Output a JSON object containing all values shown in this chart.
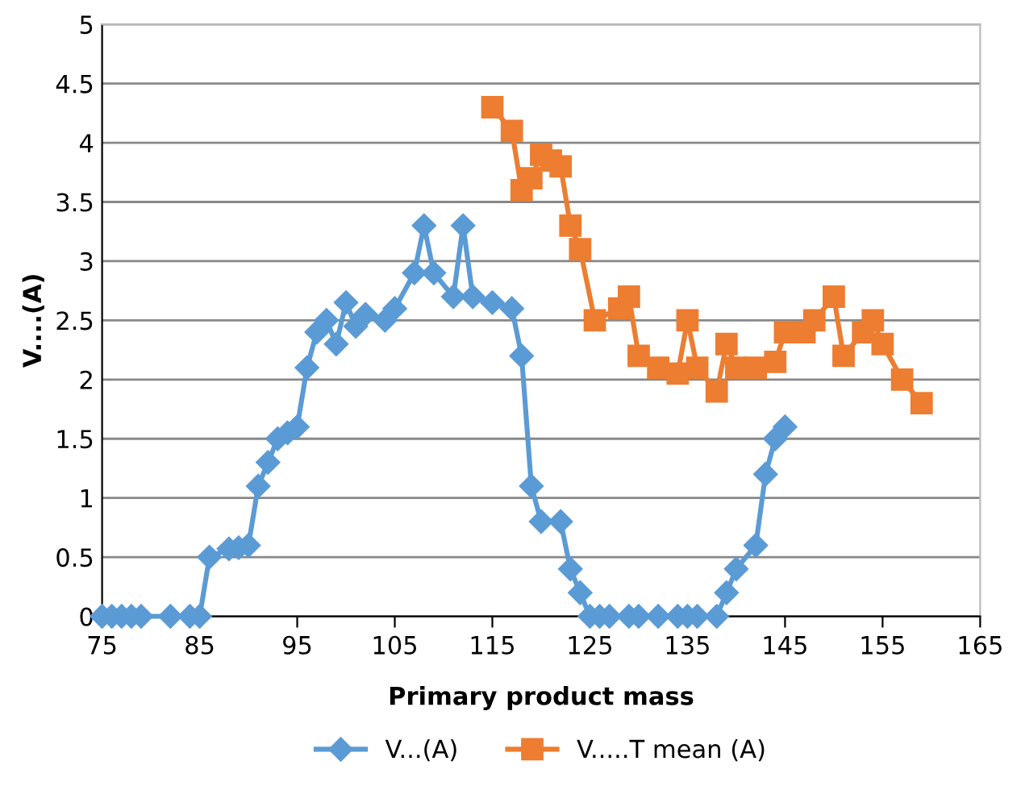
{
  "chart_data": {
    "type": "line",
    "xlabel": "Primary product mass",
    "ylabel": "V....(A)",
    "xlim": [
      75,
      165
    ],
    "xticks": [
      75,
      85,
      95,
      105,
      115,
      125,
      135,
      145,
      155,
      165
    ],
    "ylim": [
      0,
      5
    ],
    "yticks": [
      0,
      0.5,
      1,
      1.5,
      2,
      2.5,
      3,
      3.5,
      4,
      4.5,
      5
    ],
    "grid": "y",
    "legend": "bottom",
    "series": [
      {
        "name": "V...(A)",
        "color": "#5b9bd5",
        "marker": "diamond",
        "x": [
          75,
          76,
          77,
          78,
          79,
          82,
          84,
          85,
          86,
          88,
          89,
          90,
          91,
          92,
          93,
          94,
          95,
          96,
          97,
          98,
          99,
          100,
          101,
          102,
          104,
          105,
          107,
          108,
          109,
          111,
          112,
          113,
          115,
          117,
          118,
          119,
          120,
          122,
          123,
          124,
          125,
          126,
          127,
          129,
          130,
          132,
          134,
          135,
          136,
          138,
          139,
          140,
          142,
          143,
          144,
          145
        ],
        "values": [
          0,
          0,
          0,
          0,
          0,
          0,
          0,
          0,
          0.5,
          0.57,
          0.58,
          0.6,
          1.1,
          1.3,
          1.5,
          1.55,
          1.6,
          2.1,
          2.4,
          2.5,
          2.3,
          2.65,
          2.45,
          2.55,
          2.5,
          2.6,
          2.9,
          3.3,
          2.9,
          2.7,
          3.3,
          2.7,
          2.65,
          2.6,
          2.2,
          1.1,
          0.8,
          0.8,
          0.4,
          0.2,
          0,
          0,
          0,
          0,
          0,
          0,
          0,
          0,
          0,
          0,
          0.2,
          0.4,
          0.6,
          1.2,
          1.5,
          1.6
        ]
      },
      {
        "name": "V.....T mean (A)",
        "color": "#ed7d31",
        "marker": "square",
        "x": [
          115,
          117,
          118,
          119,
          120,
          121,
          122,
          123,
          124,
          125.5,
          128,
          129,
          130,
          132,
          134,
          135,
          136,
          138,
          139,
          140,
          142,
          144,
          145,
          147,
          148,
          150,
          151,
          153,
          154,
          155,
          157,
          159
        ],
        "values": [
          4.3,
          4.1,
          3.6,
          3.7,
          3.9,
          3.85,
          3.8,
          3.3,
          3.1,
          2.5,
          2.6,
          2.7,
          2.2,
          2.1,
          2.05,
          2.5,
          2.1,
          1.9,
          2.3,
          2.1,
          2.1,
          2.15,
          2.4,
          2.4,
          2.5,
          2.7,
          2.2,
          2.4,
          2.5,
          2.3,
          2.0,
          1.8
        ]
      }
    ]
  }
}
